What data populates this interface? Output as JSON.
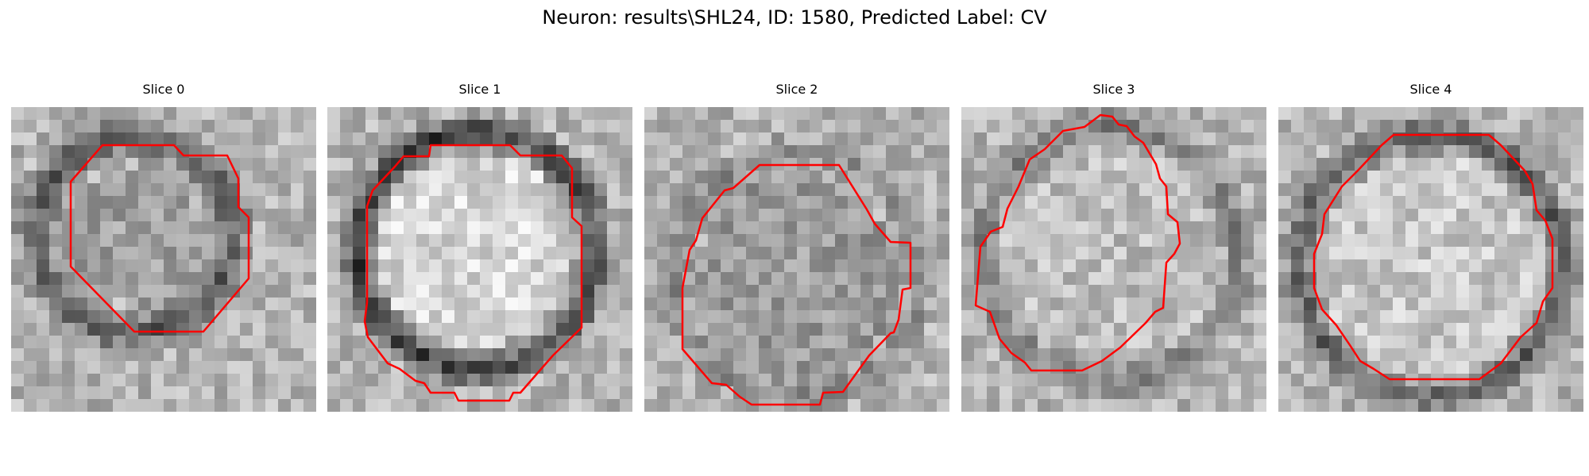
{
  "figure": {
    "title": "Neuron: results\\SHL24, ID: 1580, Predicted Label: CV",
    "contour_color": "#ff0000"
  },
  "panels": [
    {
      "title": "Slice 0"
    },
    {
      "title": "Slice 1"
    },
    {
      "title": "Slice 2"
    },
    {
      "title": "Slice 3"
    },
    {
      "title": "Slice 4"
    }
  ]
}
